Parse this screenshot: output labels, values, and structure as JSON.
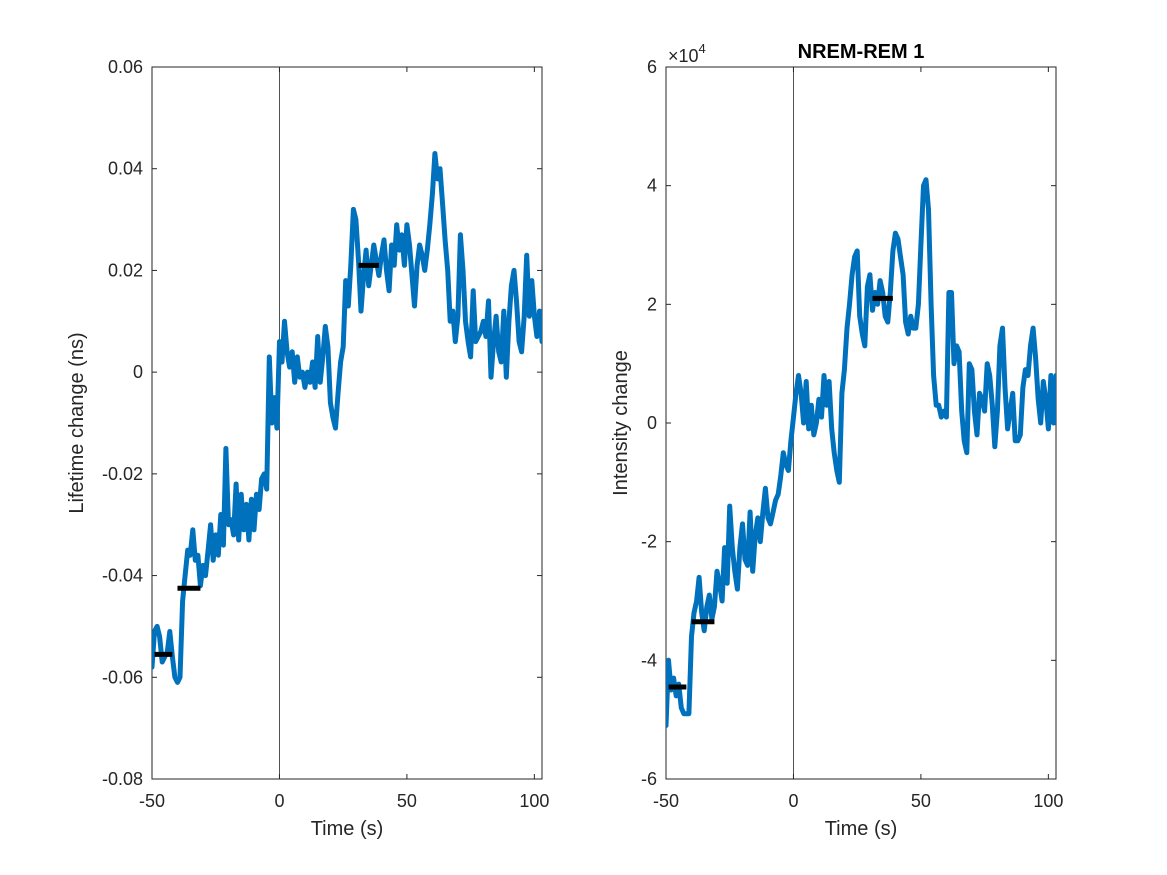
{
  "colors": {
    "series": "#0072BD",
    "marker": "#000000",
    "axis": "#262626",
    "zero_line": "#262626"
  },
  "chart_data": [
    {
      "type": "line",
      "title": "",
      "xlabel": "Time (s)",
      "ylabel": "Lifetime change (ns)",
      "xlim": [
        -50,
        103
      ],
      "ylim": [
        -0.08,
        0.06
      ],
      "xticks": [
        -50,
        0,
        50,
        100
      ],
      "xtick_labels": [
        "-50",
        "0",
        "50",
        "100"
      ],
      "yticks": [
        -0.08,
        -0.06,
        -0.04,
        -0.02,
        0,
        0.02,
        0.04,
        0.06
      ],
      "ytick_labels": [
        "-0.08",
        "-0.06",
        "-0.04",
        "-0.02",
        "0",
        "0.02",
        "0.04",
        "0.06"
      ],
      "vertical_line_x": 0,
      "grid": false,
      "series": [
        {
          "x": [
            -50,
            -49,
            -48,
            -47,
            -46,
            -45,
            -44,
            -43,
            -42,
            -41,
            -40,
            -39,
            -38,
            -37,
            -36,
            -35,
            -34,
            -33,
            -32,
            -31,
            -30,
            -29,
            -28,
            -27,
            -26,
            -25,
            -24,
            -23,
            -22,
            -21,
            -20,
            -19,
            -18,
            -17,
            -16,
            -15,
            -14,
            -13,
            -12,
            -11,
            -10,
            -9,
            -8,
            -7,
            -6,
            -5,
            -4,
            -3,
            -2,
            -1,
            0,
            1,
            2,
            3,
            4,
            5,
            6,
            7,
            8,
            9,
            10,
            11,
            12,
            13,
            14,
            15,
            16,
            17,
            18,
            19,
            20,
            21,
            22,
            23,
            24,
            25,
            26,
            27,
            28,
            29,
            30,
            31,
            32,
            33,
            34,
            35,
            36,
            37,
            38,
            39,
            40,
            41,
            42,
            43,
            44,
            45,
            46,
            47,
            48,
            49,
            50,
            51,
            52,
            53,
            54,
            55,
            56,
            57,
            58,
            59,
            60,
            61,
            62,
            63,
            64,
            65,
            66,
            67,
            68,
            69,
            70,
            71,
            72,
            73,
            74,
            75,
            76,
            77,
            78,
            79,
            80,
            81,
            82,
            83,
            84,
            85,
            86,
            87,
            88,
            89,
            90,
            91,
            92,
            93,
            94,
            95,
            96,
            97,
            98,
            99,
            100,
            101,
            102,
            103
          ],
          "y": [
            -0.058,
            -0.051,
            -0.05,
            -0.052,
            -0.057,
            -0.056,
            -0.055,
            -0.051,
            -0.056,
            -0.06,
            -0.061,
            -0.06,
            -0.045,
            -0.04,
            -0.035,
            -0.036,
            -0.031,
            -0.037,
            -0.036,
            -0.042,
            -0.038,
            -0.04,
            -0.035,
            -0.03,
            -0.037,
            -0.032,
            -0.036,
            -0.028,
            -0.034,
            -0.015,
            -0.03,
            -0.029,
            -0.032,
            -0.022,
            -0.033,
            -0.024,
            -0.031,
            -0.026,
            -0.033,
            -0.025,
            -0.031,
            -0.024,
            -0.027,
            -0.021,
            -0.02,
            -0.023,
            0.003,
            -0.01,
            -0.005,
            -0.011,
            0.006,
            0.002,
            0.01,
            0.004,
            0.001,
            0.004,
            -0.002,
            0.003,
            -0.001,
            0.0,
            -0.003,
            0.0,
            -0.002,
            0.002,
            -0.003,
            0.007,
            -0.002,
            0.003,
            0.009,
            0.005,
            -0.006,
            -0.009,
            -0.011,
            -0.004,
            0.002,
            0.005,
            0.018,
            0.013,
            0.021,
            0.032,
            0.03,
            0.022,
            0.012,
            0.019,
            0.024,
            0.017,
            0.021,
            0.025,
            0.022,
            0.019,
            0.023,
            0.026,
            0.02,
            0.016,
            0.025,
            0.021,
            0.029,
            0.024,
            0.027,
            0.021,
            0.029,
            0.025,
            0.019,
            0.013,
            0.021,
            0.025,
            0.023,
            0.02,
            0.024,
            0.029,
            0.035,
            0.043,
            0.038,
            0.04,
            0.033,
            0.026,
            0.02,
            0.01,
            0.012,
            0.006,
            0.011,
            0.027,
            0.02,
            0.01,
            0.006,
            0.003,
            0.016,
            0.006,
            0.007,
            0.008,
            0.01,
            0.007,
            0.014,
            -0.001,
            0.006,
            0.011,
            0.004,
            0.002,
            0.012,
            -0.001,
            0.01,
            0.017,
            0.02,
            0.014,
            0.006,
            0.004,
            0.011,
            0.023,
            0.011,
            0.018,
            0.011,
            0.007,
            0.012,
            0.006
          ]
        }
      ],
      "markers": [
        {
          "x1": -49,
          "x2": -42,
          "y": -0.0555
        },
        {
          "x1": -40,
          "x2": -31,
          "y": -0.0425
        },
        {
          "x1": 31,
          "x2": 39,
          "y": 0.021
        }
      ]
    },
    {
      "type": "line",
      "title": "NREM-REM 1",
      "xlabel": "Time (s)",
      "ylabel": "Intensity change",
      "exponent_base": "×10",
      "exponent_power": "4",
      "xlim": [
        -50,
        103
      ],
      "ylim": [
        -6,
        6
      ],
      "xticks": [
        -50,
        0,
        50,
        100
      ],
      "xtick_labels": [
        "-50",
        "0",
        "50",
        "100"
      ],
      "yticks": [
        -6,
        -4,
        -2,
        0,
        2,
        4,
        6
      ],
      "ytick_labels": [
        "-6",
        "-4",
        "-2",
        "0",
        "2",
        "4",
        "6"
      ],
      "vertical_line_x": 0,
      "grid": false,
      "series": [
        {
          "x": [
            -50,
            -49,
            -48,
            -47,
            -46,
            -45,
            -44,
            -43,
            -42,
            -41,
            -40,
            -39,
            -38,
            -37,
            -36,
            -35,
            -34,
            -33,
            -32,
            -31,
            -30,
            -29,
            -28,
            -27,
            -26,
            -25,
            -24,
            -23,
            -22,
            -21,
            -20,
            -19,
            -18,
            -17,
            -16,
            -15,
            -14,
            -13,
            -12,
            -11,
            -10,
            -9,
            -8,
            -7,
            -6,
            -5,
            -4,
            -3,
            -2,
            -1,
            0,
            1,
            2,
            3,
            4,
            5,
            6,
            7,
            8,
            9,
            10,
            11,
            12,
            13,
            14,
            15,
            16,
            17,
            18,
            19,
            20,
            21,
            22,
            23,
            24,
            25,
            26,
            27,
            28,
            29,
            30,
            31,
            32,
            33,
            34,
            35,
            36,
            37,
            38,
            39,
            40,
            41,
            42,
            43,
            44,
            45,
            46,
            47,
            48,
            49,
            50,
            51,
            52,
            53,
            54,
            55,
            56,
            57,
            58,
            59,
            60,
            61,
            62,
            63,
            64,
            65,
            66,
            67,
            68,
            69,
            70,
            71,
            72,
            73,
            74,
            75,
            76,
            77,
            78,
            79,
            80,
            81,
            82,
            83,
            84,
            85,
            86,
            87,
            88,
            89,
            90,
            91,
            92,
            93,
            94,
            95,
            96,
            97,
            98,
            99,
            100,
            101,
            102,
            103
          ],
          "y": [
            -5.1,
            -4.0,
            -4.5,
            -4.3,
            -4.6,
            -4.4,
            -4.8,
            -4.9,
            -4.9,
            -4.9,
            -3.6,
            -3.2,
            -3.0,
            -2.6,
            -3.2,
            -3.5,
            -3.1,
            -2.9,
            -3.3,
            -3.1,
            -2.5,
            -2.7,
            -3.0,
            -2.1,
            -2.7,
            -1.4,
            -2.1,
            -2.5,
            -2.8,
            -2.1,
            -1.7,
            -2.3,
            -2.4,
            -1.5,
            -2.5,
            -1.9,
            -1.6,
            -2.0,
            -1.5,
            -1.1,
            -1.6,
            -1.7,
            -1.5,
            -1.3,
            -1.2,
            -0.9,
            -0.5,
            -0.7,
            -0.8,
            -0.3,
            0.1,
            0.5,
            0.8,
            0.5,
            0.0,
            0.7,
            -0.1,
            0.3,
            -0.2,
            0.0,
            0.4,
            0.1,
            0.8,
            0.3,
            0.7,
            -0.1,
            -0.5,
            -0.8,
            -1.0,
            0.5,
            0.9,
            1.6,
            2.0,
            2.5,
            2.8,
            2.9,
            1.8,
            1.5,
            1.3,
            2.3,
            2.5,
            1.9,
            2.2,
            2.0,
            2.4,
            2.2,
            1.8,
            1.7,
            2.2,
            2.9,
            3.2,
            3.1,
            2.8,
            2.5,
            1.7,
            1.5,
            1.8,
            1.6,
            1.6,
            2.0,
            3.0,
            4.0,
            4.1,
            3.6,
            2.0,
            0.8,
            0.3,
            0.3,
            0.1,
            0.2,
            0.1,
            2.2,
            2.2,
            1.0,
            1.3,
            1.2,
            0.2,
            -0.3,
            -0.5,
            1.0,
            0.9,
            0.2,
            -0.2,
            0.5,
            0.4,
            0.2,
            1.0,
            0.8,
            0.3,
            -0.4,
            0.2,
            1.3,
            1.6,
            0.6,
            -0.1,
            0.2,
            0.5,
            -0.3,
            -0.3,
            -0.2,
            0.6,
            0.9,
            0.8,
            1.3,
            1.6,
            1.1,
            0.4,
            0.0,
            0.7,
            0.4,
            -0.1,
            0.8,
            0.0,
            0.8
          ]
        }
      ],
      "markers": [
        {
          "x1": -49,
          "x2": -42,
          "y": -4.45
        },
        {
          "x1": -40,
          "x2": -31,
          "y": -3.35
        },
        {
          "x1": 31,
          "x2": 39,
          "y": 2.1
        }
      ]
    }
  ]
}
